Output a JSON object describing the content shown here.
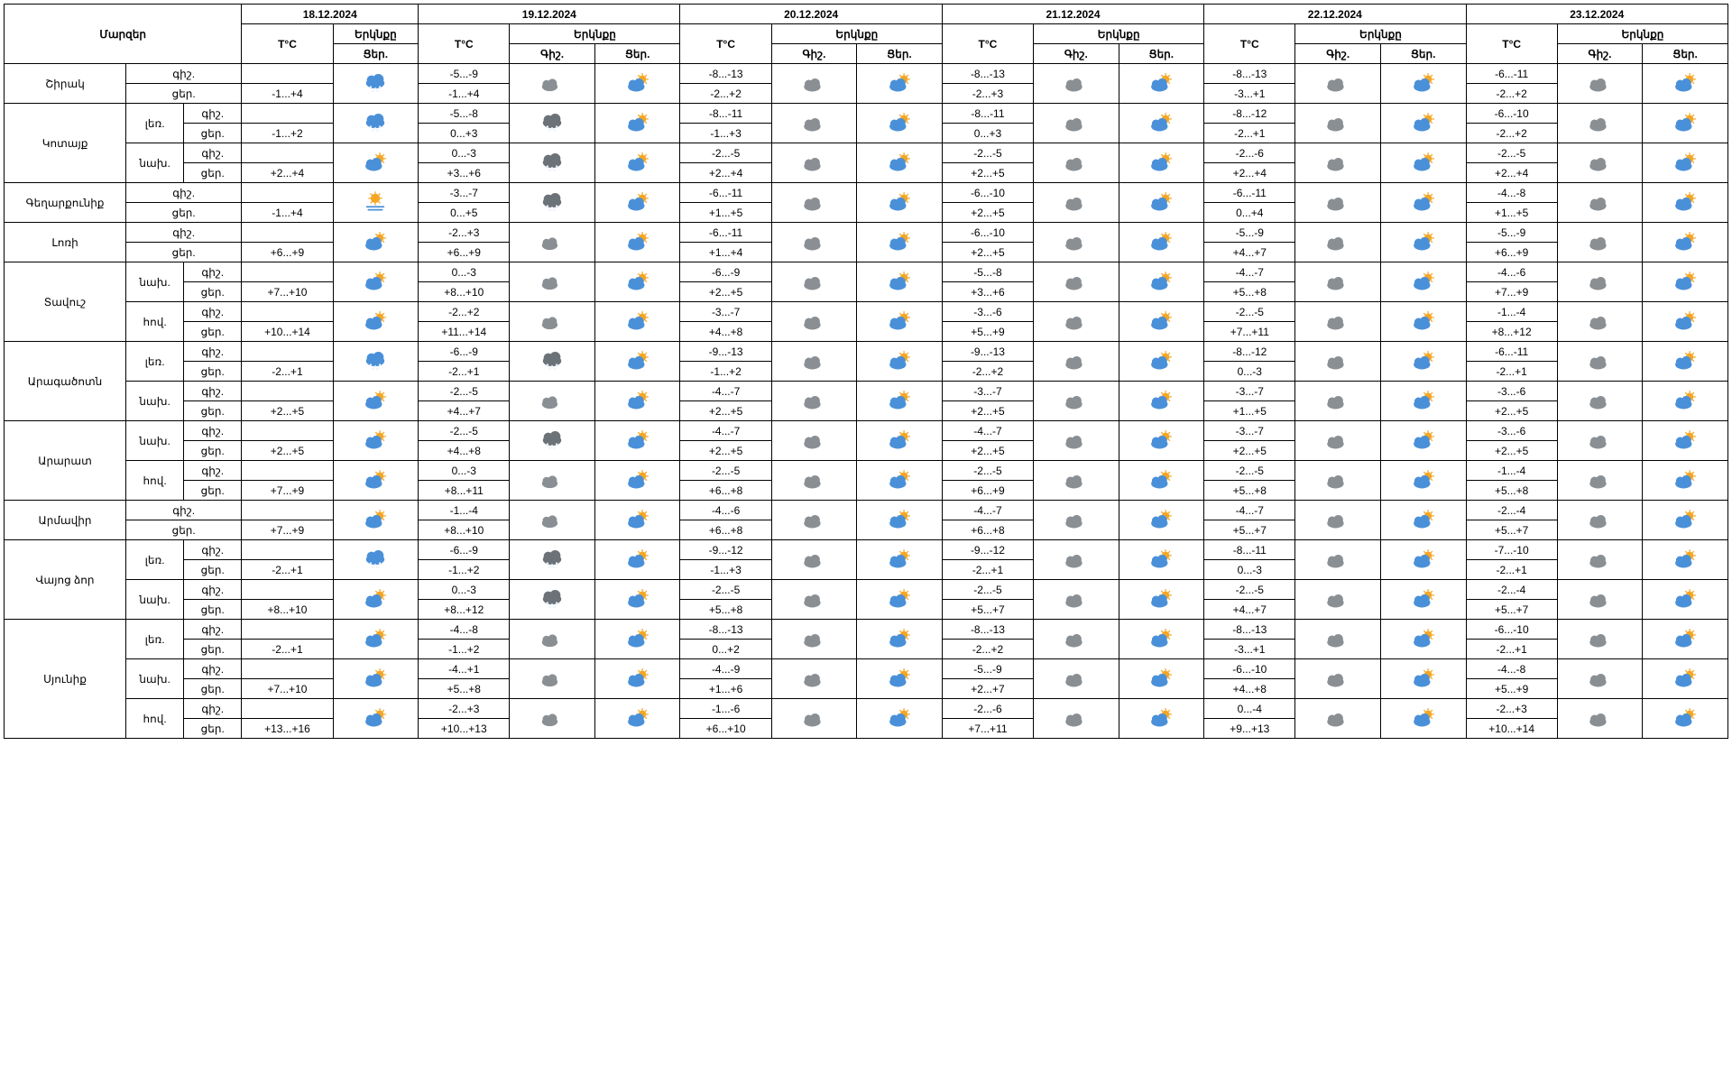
{
  "headers": {
    "regions": "Մարզեր",
    "temp": "T°C",
    "sky": "Երկնքը",
    "night": "Գիշ.",
    "day": "Ցեր.",
    "night_short": "գիշ.",
    "day_short": "ցեր.",
    "mountain": "լեռ.",
    "foothill": "նախ.",
    "valley": "հով."
  },
  "dates": [
    "18.12.2024",
    "19.12.2024",
    "20.12.2024",
    "21.12.2024",
    "22.12.2024",
    "23.12.2024"
  ],
  "colors": {
    "cloud_blue": "#4a90d9",
    "cloud_gray": "#8a8f94",
    "cloud_dark": "#6b7278",
    "sun": "#f5a623",
    "moon": "#f0c040",
    "snow": "#ffffff",
    "border": "#000000",
    "bg": "#ffffff",
    "text": "#000000"
  },
  "icons_legend": "snow=snowing cloud, sun=partly sunny, moon=partly moon, cloud_snow=gray snowing, cloud_moon=gray cloud + moon, cloud_sun_gray=gray cloud sun glimpse, sun_cloud=blue cloud sun",
  "rows": [
    {
      "region": "Շիրակ",
      "subrows": [
        {
          "label": "",
          "t18": {
            "n": "",
            "d": "-1...+4"
          },
          "i18": "snow",
          "t19": {
            "n": "-5...-9",
            "d": "-1...+4"
          },
          "i19n": "cloud_moon",
          "i19d": "sun_cloud",
          "t20": {
            "n": "-8...-13",
            "d": "-2...+2"
          },
          "i20n": "cloud_moon_g",
          "i20d": "sun_cloud",
          "t21": {
            "n": "-8...-13",
            "d": "-2...+3"
          },
          "i21n": "cloud_moon_g",
          "i21d": "sun_cloud",
          "t22": {
            "n": "-8...-13",
            "d": "-3...+1"
          },
          "i22n": "cloud_moon_g",
          "i22d": "sun_cloud",
          "t23": {
            "n": "-6...-11",
            "d": "-2...+2"
          },
          "i23n": "cloud_moon_g",
          "i23d": "sun_cloud"
        }
      ]
    },
    {
      "region": "Կոտայք",
      "subrows": [
        {
          "label": "լեռ.",
          "t18": {
            "n": "",
            "d": "-1...+2"
          },
          "i18": "snow",
          "t19": {
            "n": "-5...-8",
            "d": "0...+3"
          },
          "i19n": "cloud_snow",
          "i19d": "sun_cloud",
          "t20": {
            "n": "-8...-11",
            "d": "-1...+3"
          },
          "i20n": "cloud_moon_g",
          "i20d": "sun_cloud",
          "t21": {
            "n": "-8...-11",
            "d": "0...+3"
          },
          "i21n": "cloud_moon_g",
          "i21d": "sun_cloud",
          "t22": {
            "n": "-8...-12",
            "d": "-2...+1"
          },
          "i22n": "cloud_moon_g",
          "i22d": "sun_cloud",
          "t23": {
            "n": "-6...-10",
            "d": "-2...+2"
          },
          "i23n": "cloud_moon_g",
          "i23d": "sun_cloud"
        },
        {
          "label": "նախ.",
          "t18": {
            "n": "",
            "d": "+2...+4"
          },
          "i18": "sun_cloud",
          "t19": {
            "n": "0...-3",
            "d": "+3...+6"
          },
          "i19n": "cloud_snow",
          "i19d": "sun_cloud",
          "t20": {
            "n": "-2...-5",
            "d": "+2...+4"
          },
          "i20n": "cloud_moon_g",
          "i20d": "sun_cloud",
          "t21": {
            "n": "-2...-5",
            "d": "+2...+5"
          },
          "i21n": "cloud_moon_g",
          "i21d": "sun_cloud",
          "t22": {
            "n": "-2...-6",
            "d": "+2...+4"
          },
          "i22n": "cloud_moon_g",
          "i22d": "sun_cloud",
          "t23": {
            "n": "-2...-5",
            "d": "+2...+4"
          },
          "i23n": "cloud_moon_g",
          "i23d": "sun_cloud"
        }
      ]
    },
    {
      "region": "Գեղարքունիք",
      "subrows": [
        {
          "label": "",
          "t18": {
            "n": "",
            "d": "-1...+4"
          },
          "i18": "sun_fog",
          "t19": {
            "n": "-3...-7",
            "d": "0...+5"
          },
          "i19n": "cloud_snow",
          "i19d": "sun_cloud",
          "t20": {
            "n": "-6...-11",
            "d": "+1...+5"
          },
          "i20n": "cloud_moon_g",
          "i20d": "sun_cloud",
          "t21": {
            "n": "-6...-10",
            "d": "+2...+5"
          },
          "i21n": "cloud_moon_g",
          "i21d": "sun_cloud",
          "t22": {
            "n": "-6...-11",
            "d": "0...+4"
          },
          "i22n": "cloud_moon_g",
          "i22d": "sun_cloud",
          "t23": {
            "n": "-4...-8",
            "d": "+1...+5"
          },
          "i23n": "cloud_moon_g",
          "i23d": "sun_cloud"
        }
      ]
    },
    {
      "region": "Լոռի",
      "subrows": [
        {
          "label": "",
          "t18": {
            "n": "",
            "d": "+6...+9"
          },
          "i18": "sun_cloud",
          "t19": {
            "n": "-2...+3",
            "d": "+6...+9"
          },
          "i19n": "cloud_moon",
          "i19d": "sun_cloud",
          "t20": {
            "n": "-6...-11",
            "d": "+1...+4"
          },
          "i20n": "cloud_moon_g",
          "i20d": "sun_cloud",
          "t21": {
            "n": "-6...-10",
            "d": "+2...+5"
          },
          "i21n": "cloud_moon_g",
          "i21d": "sun_cloud",
          "t22": {
            "n": "-5...-9",
            "d": "+4...+7"
          },
          "i22n": "cloud_moon_g",
          "i22d": "sun_cloud",
          "t23": {
            "n": "-5...-9",
            "d": "+6...+9"
          },
          "i23n": "cloud_moon_g",
          "i23d": "sun_cloud"
        }
      ]
    },
    {
      "region": "Տավուշ",
      "subrows": [
        {
          "label": "նախ.",
          "t18": {
            "n": "",
            "d": "+7...+10"
          },
          "i18": "sun_cloud",
          "t19": {
            "n": "0...-3",
            "d": "+8...+10"
          },
          "i19n": "cloud_moon",
          "i19d": "sun_cloud",
          "t20": {
            "n": "-6...-9",
            "d": "+2...+5"
          },
          "i20n": "cloud_moon_g",
          "i20d": "sun_cloud",
          "t21": {
            "n": "-5...-8",
            "d": "+3...+6"
          },
          "i21n": "cloud_moon_g",
          "i21d": "sun_cloud",
          "t22": {
            "n": "-4...-7",
            "d": "+5...+8"
          },
          "i22n": "cloud_moon_g",
          "i22d": "sun_cloud",
          "t23": {
            "n": "-4...-6",
            "d": "+7...+9"
          },
          "i23n": "cloud_moon_g",
          "i23d": "sun_cloud"
        },
        {
          "label": "հով.",
          "t18": {
            "n": "",
            "d": "+10...+14"
          },
          "i18": "sun_cloud",
          "t19": {
            "n": "-2...+2",
            "d": "+11...+14"
          },
          "i19n": "cloud_moon",
          "i19d": "sun_cloud",
          "t20": {
            "n": "-3...-7",
            "d": "+4...+8"
          },
          "i20n": "cloud_moon_g",
          "i20d": "sun_cloud",
          "t21": {
            "n": "-3...-6",
            "d": "+5...+9"
          },
          "i21n": "cloud_moon_g",
          "i21d": "sun_cloud",
          "t22": {
            "n": "-2...-5",
            "d": "+7...+11"
          },
          "i22n": "cloud_moon_g",
          "i22d": "sun_cloud",
          "t23": {
            "n": "-1...-4",
            "d": "+8...+12"
          },
          "i23n": "cloud_moon_g",
          "i23d": "sun_cloud"
        }
      ]
    },
    {
      "region": "Արագածոտն",
      "subrows": [
        {
          "label": "լեռ.",
          "t18": {
            "n": "",
            "d": "-2...+1"
          },
          "i18": "snow",
          "t19": {
            "n": "-6...-9",
            "d": "-2...+1"
          },
          "i19n": "cloud_snow",
          "i19d": "sun_cloud",
          "t20": {
            "n": "-9...-13",
            "d": "-1...+2"
          },
          "i20n": "cloud_moon_g",
          "i20d": "sun_cloud",
          "t21": {
            "n": "-9...-13",
            "d": "-2...+2"
          },
          "i21n": "cloud_moon_g",
          "i21d": "sun_cloud",
          "t22": {
            "n": "-8...-12",
            "d": "0...-3"
          },
          "i22n": "cloud_moon_g",
          "i22d": "sun_cloud",
          "t23": {
            "n": "-6...-11",
            "d": "-2...+1"
          },
          "i23n": "cloud_moon_g",
          "i23d": "sun_cloud"
        },
        {
          "label": "նախ.",
          "t18": {
            "n": "",
            "d": "+2...+5"
          },
          "i18": "sun_cloud",
          "t19": {
            "n": "-2...-5",
            "d": "+4...+7"
          },
          "i19n": "cloud_moon",
          "i19d": "sun_cloud",
          "t20": {
            "n": "-4...-7",
            "d": "+2...+5"
          },
          "i20n": "cloud_moon_g",
          "i20d": "sun_cloud",
          "t21": {
            "n": "-3...-7",
            "d": "+2...+5"
          },
          "i21n": "cloud_moon_g",
          "i21d": "sun_cloud",
          "t22": {
            "n": "-3...-7",
            "d": "+1...+5"
          },
          "i22n": "cloud_moon_g",
          "i22d": "sun_cloud",
          "t23": {
            "n": "-3...-6",
            "d": "+2...+5"
          },
          "i23n": "cloud_moon_g",
          "i23d": "sun_cloud"
        }
      ]
    },
    {
      "region": "Արարատ",
      "subrows": [
        {
          "label": "նախ.",
          "t18": {
            "n": "",
            "d": "+2...+5"
          },
          "i18": "sun_cloud",
          "t19": {
            "n": "-2...-5",
            "d": "+4...+8"
          },
          "i19n": "cloud_snow",
          "i19d": "sun_cloud",
          "t20": {
            "n": "-4...-7",
            "d": "+2...+5"
          },
          "i20n": "cloud_moon_g",
          "i20d": "sun_cloud",
          "t21": {
            "n": "-4...-7",
            "d": "+2...+5"
          },
          "i21n": "cloud_moon_g",
          "i21d": "sun_cloud",
          "t22": {
            "n": "-3...-7",
            "d": "+2...+5"
          },
          "i22n": "cloud_moon_g",
          "i22d": "sun_cloud",
          "t23": {
            "n": "-3...-6",
            "d": "+2...+5"
          },
          "i23n": "cloud_moon_g",
          "i23d": "sun_cloud"
        },
        {
          "label": "հով.",
          "t18": {
            "n": "",
            "d": "+7...+9"
          },
          "i18": "sun_cloud",
          "t19": {
            "n": "0...-3",
            "d": "+8...+11"
          },
          "i19n": "cloud_moon",
          "i19d": "sun_cloud",
          "t20": {
            "n": "-2...-5",
            "d": "+6...+8"
          },
          "i20n": "cloud_moon_g",
          "i20d": "sun_cloud",
          "t21": {
            "n": "-2...-5",
            "d": "+6...+9"
          },
          "i21n": "cloud_moon_g",
          "i21d": "sun_cloud",
          "t22": {
            "n": "-2...-5",
            "d": "+5...+8"
          },
          "i22n": "cloud_moon_g",
          "i22d": "sun_cloud",
          "t23": {
            "n": "-1...-4",
            "d": "+5...+8"
          },
          "i23n": "cloud_moon_g",
          "i23d": "sun_cloud"
        }
      ]
    },
    {
      "region": "Արմավիր",
      "subrows": [
        {
          "label": "",
          "t18": {
            "n": "",
            "d": "+7...+9"
          },
          "i18": "sun_cloud",
          "t19": {
            "n": "-1...-4",
            "d": "+8...+10"
          },
          "i19n": "cloud_moon",
          "i19d": "sun_cloud",
          "t20": {
            "n": "-4...-6",
            "d": "+6...+8"
          },
          "i20n": "cloud_moon_g",
          "i20d": "sun_cloud",
          "t21": {
            "n": "-4...-7",
            "d": "+6...+8"
          },
          "i21n": "cloud_moon_g",
          "i21d": "sun_cloud",
          "t22": {
            "n": "-4...-7",
            "d": "+5...+7"
          },
          "i22n": "cloud_moon_g",
          "i22d": "sun_cloud",
          "t23": {
            "n": "-2...-4",
            "d": "+5...+7"
          },
          "i23n": "cloud_moon_g",
          "i23d": "sun_cloud"
        }
      ]
    },
    {
      "region": "Վայոց ձոր",
      "subrows": [
        {
          "label": "լեռ.",
          "t18": {
            "n": "",
            "d": "-2...+1"
          },
          "i18": "snow",
          "t19": {
            "n": "-6...-9",
            "d": "-1...+2"
          },
          "i19n": "cloud_snow",
          "i19d": "sun_cloud",
          "t20": {
            "n": "-9...-12",
            "d": "-1...+3"
          },
          "i20n": "cloud_moon_g",
          "i20d": "sun_cloud",
          "t21": {
            "n": "-9...-12",
            "d": "-2...+1"
          },
          "i21n": "cloud_moon_g",
          "i21d": "sun_cloud",
          "t22": {
            "n": "-8...-11",
            "d": "0...-3"
          },
          "i22n": "cloud_moon_g",
          "i22d": "sun_cloud",
          "t23": {
            "n": "-7...-10",
            "d": "-2...+1"
          },
          "i23n": "cloud_moon_g",
          "i23d": "sun_cloud"
        },
        {
          "label": "նախ.",
          "t18": {
            "n": "",
            "d": "+8...+10"
          },
          "i18": "sun_cloud",
          "t19": {
            "n": "0...-3",
            "d": "+8...+12"
          },
          "i19n": "cloud_snow",
          "i19d": "sun_cloud",
          "t20": {
            "n": "-2...-5",
            "d": "+5...+8"
          },
          "i20n": "cloud_moon_g",
          "i20d": "sun_cloud",
          "t21": {
            "n": "-2...-5",
            "d": "+5...+7"
          },
          "i21n": "cloud_moon_g",
          "i21d": "sun_cloud",
          "t22": {
            "n": "-2...-5",
            "d": "+4...+7"
          },
          "i22n": "cloud_moon_g",
          "i22d": "sun_cloud",
          "t23": {
            "n": "-2...-4",
            "d": "+5...+7"
          },
          "i23n": "cloud_moon_g",
          "i23d": "sun_cloud"
        }
      ]
    },
    {
      "region": "Սյունիք",
      "subrows": [
        {
          "label": "լեռ.",
          "t18": {
            "n": "",
            "d": "-2...+1"
          },
          "i18": "sun_cloud",
          "t19": {
            "n": "-4...-8",
            "d": "-1...+2"
          },
          "i19n": "cloud_moon",
          "i19d": "sun_cloud",
          "t20": {
            "n": "-8...-13",
            "d": "0...+2"
          },
          "i20n": "cloud_moon_g",
          "i20d": "sun_cloud",
          "t21": {
            "n": "-8...-13",
            "d": "-2...+2"
          },
          "i21n": "cloud_moon_g",
          "i21d": "sun_cloud",
          "t22": {
            "n": "-8...-13",
            "d": "-3...+1"
          },
          "i22n": "cloud_moon_g",
          "i22d": "sun_cloud",
          "t23": {
            "n": "-6...-10",
            "d": "-2...+1"
          },
          "i23n": "cloud_moon_g",
          "i23d": "sun_cloud"
        },
        {
          "label": "նախ.",
          "t18": {
            "n": "",
            "d": "+7...+10"
          },
          "i18": "sun_cloud",
          "t19": {
            "n": "-4...+1",
            "d": "+5...+8"
          },
          "i19n": "cloud_moon",
          "i19d": "sun_cloud",
          "t20": {
            "n": "-4...-9",
            "d": "+1...+6"
          },
          "i20n": "cloud_moon_g",
          "i20d": "sun_cloud",
          "t21": {
            "n": "-5...-9",
            "d": "+2...+7"
          },
          "i21n": "cloud_moon_g",
          "i21d": "sun_cloud",
          "t22": {
            "n": "-6...-10",
            "d": "+4...+8"
          },
          "i22n": "cloud_moon_g",
          "i22d": "sun_cloud",
          "t23": {
            "n": "-4...-8",
            "d": "+5...+9"
          },
          "i23n": "cloud_moon_g",
          "i23d": "sun_cloud"
        },
        {
          "label": "հով.",
          "t18": {
            "n": "",
            "d": "+13...+16"
          },
          "i18": "sun_cloud",
          "t19": {
            "n": "-2...+3",
            "d": "+10...+13"
          },
          "i19n": "cloud_moon",
          "i19d": "sun_cloud",
          "t20": {
            "n": "-1...-6",
            "d": "+6...+10"
          },
          "i20n": "cloud_moon_g",
          "i20d": "sun_cloud",
          "t21": {
            "n": "-2...-6",
            "d": "+7...+11"
          },
          "i21n": "cloud_moon_g",
          "i21d": "sun_cloud",
          "t22": {
            "n": "0...-4",
            "d": "+9...+13"
          },
          "i22n": "cloud_moon_g",
          "i22d": "sun_cloud",
          "t23": {
            "n": "-2...+3",
            "d": "+10...+14"
          },
          "i23n": "cloud_moon_g",
          "i23d": "sun_cloud"
        }
      ]
    }
  ]
}
